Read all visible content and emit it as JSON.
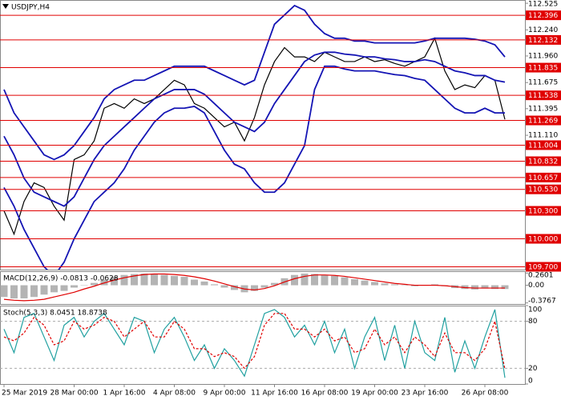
{
  "chart_data": [
    {
      "type": "line",
      "title": "USDJPY,H4",
      "categories": [
        "25 Mar 2019",
        null,
        null,
        null,
        null,
        null,
        null,
        "28 Mar 00:00",
        null,
        null,
        null,
        null,
        "1 Apr 16:00",
        null,
        null,
        null,
        null,
        "4 Apr 08:00",
        null,
        null,
        null,
        null,
        "9 Apr 00:00",
        null,
        null,
        null,
        null,
        "11 Apr 16:00",
        null,
        null,
        null,
        null,
        "16 Apr 08:00",
        null,
        null,
        null,
        null,
        "19 Apr 00:00",
        null,
        null,
        null,
        null,
        "23 Apr 16:00",
        null,
        null,
        null,
        null,
        null,
        "26 Apr 08:00",
        null,
        null
      ],
      "series": [
        {
          "name": "Price",
          "color": "#000000",
          "values": [
            110.3,
            110.05,
            110.4,
            110.6,
            110.55,
            110.35,
            110.2,
            110.85,
            110.9,
            111.05,
            111.4,
            111.45,
            111.4,
            111.5,
            111.45,
            111.5,
            111.6,
            111.7,
            111.65,
            111.45,
            111.4,
            111.3,
            111.2,
            111.25,
            111.05,
            111.3,
            111.65,
            111.9,
            112.05,
            111.95,
            111.95,
            111.9,
            112.0,
            111.95,
            111.9,
            111.9,
            111.95,
            111.9,
            111.92,
            111.88,
            111.85,
            111.9,
            111.95,
            112.15,
            111.8,
            111.6,
            111.65,
            111.62,
            111.75,
            111.7,
            111.28
          ]
        },
        {
          "name": "BB Upper",
          "color": "#1414b4",
          "values": [
            111.6,
            111.35,
            111.2,
            111.05,
            110.9,
            110.85,
            110.9,
            111.0,
            111.15,
            111.3,
            111.5,
            111.6,
            111.65,
            111.7,
            111.7,
            111.75,
            111.8,
            111.85,
            111.85,
            111.85,
            111.85,
            111.8,
            111.75,
            111.7,
            111.65,
            111.7,
            112.0,
            112.3,
            112.4,
            112.5,
            112.45,
            112.3,
            112.2,
            112.15,
            112.15,
            112.12,
            112.12,
            112.1,
            112.1,
            112.1,
            112.1,
            112.1,
            112.12,
            112.15,
            112.15,
            112.15,
            112.15,
            112.14,
            112.12,
            112.08,
            111.95
          ]
        },
        {
          "name": "BB Middle",
          "color": "#1414b4",
          "values": [
            111.1,
            110.9,
            110.65,
            110.5,
            110.45,
            110.4,
            110.35,
            110.45,
            110.65,
            110.85,
            111.0,
            111.1,
            111.2,
            111.3,
            111.4,
            111.5,
            111.55,
            111.6,
            111.6,
            111.6,
            111.55,
            111.45,
            111.35,
            111.25,
            111.2,
            111.15,
            111.25,
            111.45,
            111.6,
            111.75,
            111.9,
            111.97,
            112.0,
            112.0,
            111.98,
            111.97,
            111.95,
            111.95,
            111.93,
            111.92,
            111.9,
            111.9,
            111.92,
            111.9,
            111.85,
            111.8,
            111.78,
            111.75,
            111.75,
            111.7,
            111.68
          ]
        },
        {
          "name": "BB Lower",
          "color": "#1414b4",
          "values": [
            110.55,
            110.35,
            110.1,
            109.9,
            109.7,
            109.6,
            109.75,
            110.0,
            110.2,
            110.4,
            110.5,
            110.6,
            110.75,
            110.95,
            111.1,
            111.25,
            111.35,
            111.4,
            111.4,
            111.42,
            111.35,
            111.15,
            110.95,
            110.8,
            110.75,
            110.6,
            110.5,
            110.5,
            110.6,
            110.8,
            111.0,
            111.6,
            111.85,
            111.85,
            111.82,
            111.8,
            111.8,
            111.8,
            111.78,
            111.76,
            111.75,
            111.72,
            111.7,
            111.6,
            111.5,
            111.4,
            111.35,
            111.35,
            111.4,
            111.35,
            111.35
          ]
        }
      ],
      "ylim": [
        109.67,
        112.56
      ],
      "yticks": [
        112.525,
        {
          "value": 112.24,
          "label": "112.240"
        },
        {
          "value": 111.96,
          "label": "111.960"
        },
        111.675,
        111.395,
        {
          "value": 111.11,
          "label": "111.110"
        }
      ],
      "levels": [
        112.396,
        112.132,
        111.835,
        111.538,
        111.269,
        111.004,
        110.832,
        110.657,
        {
          "value": 110.53,
          "label": "110.530"
        },
        {
          "value": 110.3,
          "label": "110.300"
        },
        {
          "value": 110.0,
          "label": "110.000"
        },
        {
          "value": 109.7,
          "label": "109.700"
        }
      ],
      "level_color": "#e00000"
    },
    {
      "type": "bar",
      "title": "MACD(12,26,9) -0.0813 -0.0628",
      "series": [
        {
          "name": "MACD",
          "type": "bar",
          "color": "#b4b4b4",
          "values": [
            -0.25,
            -0.28,
            -0.28,
            -0.25,
            -0.2,
            -0.15,
            -0.12,
            -0.05,
            0.0,
            0.05,
            0.12,
            0.18,
            0.22,
            0.24,
            0.25,
            0.24,
            0.22,
            0.2,
            0.18,
            0.12,
            0.08,
            0.02,
            -0.05,
            -0.1,
            -0.15,
            -0.12,
            -0.05,
            0.05,
            0.15,
            0.22,
            0.25,
            0.24,
            0.22,
            0.2,
            0.17,
            0.13,
            0.1,
            0.07,
            0.04,
            0.02,
            0.0,
            -0.02,
            0.0,
            0.02,
            -0.02,
            -0.06,
            -0.08,
            -0.09,
            -0.07,
            -0.08,
            -0.08
          ]
        },
        {
          "name": "Signal",
          "type": "line",
          "color": "#e00000",
          "values": [
            -0.3,
            -0.32,
            -0.33,
            -0.32,
            -0.3,
            -0.25,
            -0.2,
            -0.15,
            -0.08,
            -0.02,
            0.05,
            0.11,
            0.16,
            0.2,
            0.23,
            0.24,
            0.24,
            0.23,
            0.21,
            0.18,
            0.14,
            0.09,
            0.03,
            -0.03,
            -0.08,
            -0.1,
            -0.07,
            -0.01,
            0.07,
            0.14,
            0.19,
            0.22,
            0.22,
            0.21,
            0.19,
            0.16,
            0.13,
            0.1,
            0.07,
            0.04,
            0.02,
            0.0,
            0.0,
            0.0,
            -0.01,
            -0.03,
            -0.05,
            -0.06,
            -0.06,
            -0.06,
            -0.06
          ]
        }
      ],
      "ylim": [
        -0.4,
        0.3
      ],
      "yticks": [
        0.2601,
        {
          "value": 0,
          "label": "0.00"
        },
        -0.3767
      ]
    },
    {
      "type": "line",
      "title": "Stoch(5,3,3) 8.0451 18.8738",
      "series": [
        {
          "name": "Main",
          "type": "line",
          "color": "#20a0a0",
          "values": [
            70,
            40,
            85,
            90,
            60,
            30,
            75,
            85,
            60,
            80,
            90,
            70,
            50,
            85,
            80,
            40,
            70,
            85,
            60,
            30,
            50,
            20,
            45,
            30,
            10,
            50,
            90,
            95,
            85,
            60,
            75,
            50,
            80,
            40,
            70,
            20,
            60,
            85,
            30,
            75,
            20,
            80,
            40,
            30,
            85,
            15,
            55,
            20,
            60,
            95,
            8
          ]
        },
        {
          "name": "Signal",
          "type": "line",
          "dashed": true,
          "color": "#e00000",
          "values": [
            60,
            55,
            65,
            85,
            75,
            50,
            55,
            80,
            70,
            75,
            85,
            80,
            60,
            70,
            80,
            60,
            60,
            80,
            70,
            45,
            45,
            35,
            40,
            35,
            20,
            35,
            75,
            90,
            90,
            70,
            70,
            60,
            70,
            55,
            60,
            40,
            45,
            70,
            50,
            60,
            40,
            60,
            50,
            35,
            65,
            40,
            40,
            30,
            45,
            80,
            19
          ]
        }
      ],
      "ylim": [
        0,
        100
      ],
      "yticks": [
        100,
        80,
        20,
        0
      ]
    }
  ]
}
